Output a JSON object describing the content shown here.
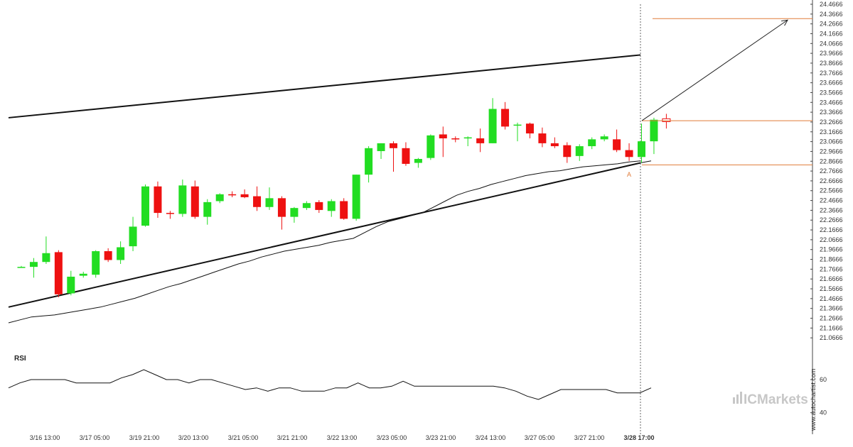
{
  "chart_data": {
    "type": "candlestick",
    "colors": {
      "up": "#22dd22",
      "down": "#ee1111",
      "channel": "#111111",
      "level": "#e07b39",
      "ma": "#111111",
      "rsi": "#111111",
      "vline": "#666666"
    },
    "price_axis": {
      "ylim": [
        20.9666,
        24.4666
      ],
      "ticks": [
        "24.4666",
        "24.3666",
        "24.2666",
        "24.1666",
        "24.0666",
        "23.9666",
        "23.8666",
        "23.7666",
        "23.6666",
        "23.5666",
        "23.4666",
        "23.3666",
        "23.2666",
        "23.1666",
        "23.0666",
        "22.9666",
        "22.8666",
        "22.7666",
        "22.6666",
        "22.5666",
        "22.4666",
        "22.3666",
        "22.2666",
        "22.1666",
        "22.0666",
        "21.9666",
        "21.8666",
        "21.7666",
        "21.6666",
        "21.5666",
        "21.4666",
        "21.3666",
        "21.2666",
        "21.1666",
        "21.0666"
      ]
    },
    "x_labels": [
      "3/16 13:00",
      "3/17 05:00",
      "3/19 21:00",
      "3/20 13:00",
      "3/21 05:00",
      "3/21 21:00",
      "3/22 13:00",
      "3/23 05:00",
      "3/23 21:00",
      "3/24 13:00",
      "3/27 05:00",
      "3/27 21:00",
      "3/28 17:00"
    ],
    "candles": [
      {
        "o": 21.78,
        "h": 21.8,
        "l": 21.78,
        "c": 21.79
      },
      {
        "o": 21.79,
        "h": 21.88,
        "l": 21.68,
        "c": 21.84
      },
      {
        "o": 21.84,
        "h": 22.1,
        "l": 21.82,
        "c": 21.93
      },
      {
        "o": 21.94,
        "h": 21.96,
        "l": 21.48,
        "c": 21.51
      },
      {
        "o": 21.52,
        "h": 21.75,
        "l": 21.5,
        "c": 21.69
      },
      {
        "o": 21.7,
        "h": 21.74,
        "l": 21.68,
        "c": 21.72
      },
      {
        "o": 21.71,
        "h": 21.96,
        "l": 21.68,
        "c": 21.95
      },
      {
        "o": 21.95,
        "h": 21.98,
        "l": 21.84,
        "c": 21.86
      },
      {
        "o": 21.86,
        "h": 22.05,
        "l": 21.82,
        "c": 21.99
      },
      {
        "o": 22.0,
        "h": 22.3,
        "l": 21.95,
        "c": 22.2
      },
      {
        "o": 22.21,
        "h": 22.63,
        "l": 22.2,
        "c": 22.61
      },
      {
        "o": 22.61,
        "h": 22.66,
        "l": 22.29,
        "c": 22.34
      },
      {
        "o": 22.34,
        "h": 22.36,
        "l": 22.28,
        "c": 22.33
      },
      {
        "o": 22.33,
        "h": 22.68,
        "l": 22.3,
        "c": 22.62
      },
      {
        "o": 22.61,
        "h": 22.67,
        "l": 22.28,
        "c": 22.3
      },
      {
        "o": 22.3,
        "h": 22.48,
        "l": 22.22,
        "c": 22.45
      },
      {
        "o": 22.46,
        "h": 22.54,
        "l": 22.44,
        "c": 22.53
      },
      {
        "o": 22.53,
        "h": 22.56,
        "l": 22.5,
        "c": 22.52
      },
      {
        "o": 22.53,
        "h": 22.58,
        "l": 22.49,
        "c": 22.5
      },
      {
        "o": 22.51,
        "h": 22.61,
        "l": 22.36,
        "c": 22.4
      },
      {
        "o": 22.4,
        "h": 22.6,
        "l": 22.37,
        "c": 22.49
      },
      {
        "o": 22.49,
        "h": 22.51,
        "l": 22.17,
        "c": 22.3
      },
      {
        "o": 22.3,
        "h": 22.4,
        "l": 22.24,
        "c": 22.39
      },
      {
        "o": 22.39,
        "h": 22.46,
        "l": 22.37,
        "c": 22.44
      },
      {
        "o": 22.45,
        "h": 22.47,
        "l": 22.34,
        "c": 22.37
      },
      {
        "o": 22.36,
        "h": 22.48,
        "l": 22.3,
        "c": 22.46
      },
      {
        "o": 22.46,
        "h": 22.49,
        "l": 22.27,
        "c": 22.28
      },
      {
        "o": 22.28,
        "h": 22.73,
        "l": 22.26,
        "c": 22.73
      },
      {
        "o": 22.73,
        "h": 23.02,
        "l": 22.65,
        "c": 23.0
      },
      {
        "o": 22.97,
        "h": 23.05,
        "l": 22.89,
        "c": 23.05
      },
      {
        "o": 23.05,
        "h": 23.07,
        "l": 22.76,
        "c": 23.0
      },
      {
        "o": 23.0,
        "h": 23.06,
        "l": 22.82,
        "c": 22.84
      },
      {
        "o": 22.85,
        "h": 22.9,
        "l": 22.8,
        "c": 22.89
      },
      {
        "o": 22.9,
        "h": 23.14,
        "l": 22.88,
        "c": 23.13
      },
      {
        "o": 23.14,
        "h": 23.22,
        "l": 22.91,
        "c": 23.1
      },
      {
        "o": 23.1,
        "h": 23.12,
        "l": 23.06,
        "c": 23.09
      },
      {
        "o": 23.1,
        "h": 23.12,
        "l": 23.02,
        "c": 23.11
      },
      {
        "o": 23.1,
        "h": 23.2,
        "l": 22.96,
        "c": 23.05
      },
      {
        "o": 23.05,
        "h": 23.51,
        "l": 23.05,
        "c": 23.4
      },
      {
        "o": 23.4,
        "h": 23.47,
        "l": 23.19,
        "c": 23.22
      },
      {
        "o": 23.23,
        "h": 23.26,
        "l": 23.07,
        "c": 23.24
      },
      {
        "o": 23.25,
        "h": 23.26,
        "l": 23.1,
        "c": 23.15
      },
      {
        "o": 23.15,
        "h": 23.21,
        "l": 23.01,
        "c": 23.05
      },
      {
        "o": 23.05,
        "h": 23.11,
        "l": 23.0,
        "c": 23.02
      },
      {
        "o": 23.03,
        "h": 23.06,
        "l": 22.85,
        "c": 22.91
      },
      {
        "o": 22.92,
        "h": 23.04,
        "l": 22.87,
        "c": 23.02
      },
      {
        "o": 23.02,
        "h": 23.11,
        "l": 22.99,
        "c": 23.09
      },
      {
        "o": 23.09,
        "h": 23.14,
        "l": 23.07,
        "c": 23.12
      },
      {
        "o": 23.09,
        "h": 23.19,
        "l": 22.96,
        "c": 22.98
      },
      {
        "o": 22.98,
        "h": 23.05,
        "l": 22.87,
        "c": 22.91
      },
      {
        "o": 22.91,
        "h": 23.25,
        "l": 22.85,
        "c": 23.07
      },
      {
        "o": 23.07,
        "h": 23.31,
        "l": 22.94,
        "c": 23.29
      },
      {
        "o": 23.3,
        "h": 23.35,
        "l": 23.2,
        "c": 23.27
      }
    ],
    "moving_average": [
      21.22,
      21.25,
      21.28,
      21.29,
      21.3,
      21.32,
      21.34,
      21.36,
      21.38,
      21.41,
      21.44,
      21.47,
      21.51,
      21.55,
      21.59,
      21.62,
      21.66,
      21.7,
      21.74,
      21.78,
      21.82,
      21.85,
      21.89,
      21.92,
      21.95,
      21.97,
      21.99,
      22.01,
      22.04,
      22.06,
      22.08,
      22.14,
      22.2,
      22.25,
      22.28,
      22.31,
      22.34,
      22.4,
      22.46,
      22.52,
      22.56,
      22.59,
      22.63,
      22.66,
      22.69,
      22.72,
      22.74,
      22.76,
      22.77,
      22.79,
      22.81,
      22.82,
      22.83,
      22.84,
      22.86,
      22.87
    ],
    "channel": {
      "upper": [
        23.31,
        23.95
      ],
      "lower": [
        21.38,
        22.85
      ],
      "lower_extended_to": 22.87
    },
    "levels": [
      24.32,
      23.28,
      22.83
    ],
    "forecast_arrow": {
      "from": 23.28,
      "to": 24.32
    },
    "marker_label": "A",
    "rsi": {
      "title": "RSI",
      "ticks": [
        "60",
        "40"
      ],
      "ylim": [
        30,
        75
      ],
      "values": [
        55,
        58,
        60,
        60,
        60,
        60,
        58,
        58,
        58,
        58,
        61,
        63,
        66,
        63,
        60,
        60,
        58,
        60,
        60,
        58,
        56,
        54,
        55,
        53,
        55,
        55,
        53,
        53,
        53,
        55,
        55,
        58,
        55,
        55,
        56,
        59,
        56,
        56,
        56,
        56,
        56,
        56,
        56,
        56,
        55,
        53,
        50,
        48,
        51,
        54,
        54,
        54,
        54,
        54,
        52,
        52,
        52,
        55
      ]
    }
  },
  "watermark": "www.autochartist.com",
  "brand": "ICMarkets"
}
